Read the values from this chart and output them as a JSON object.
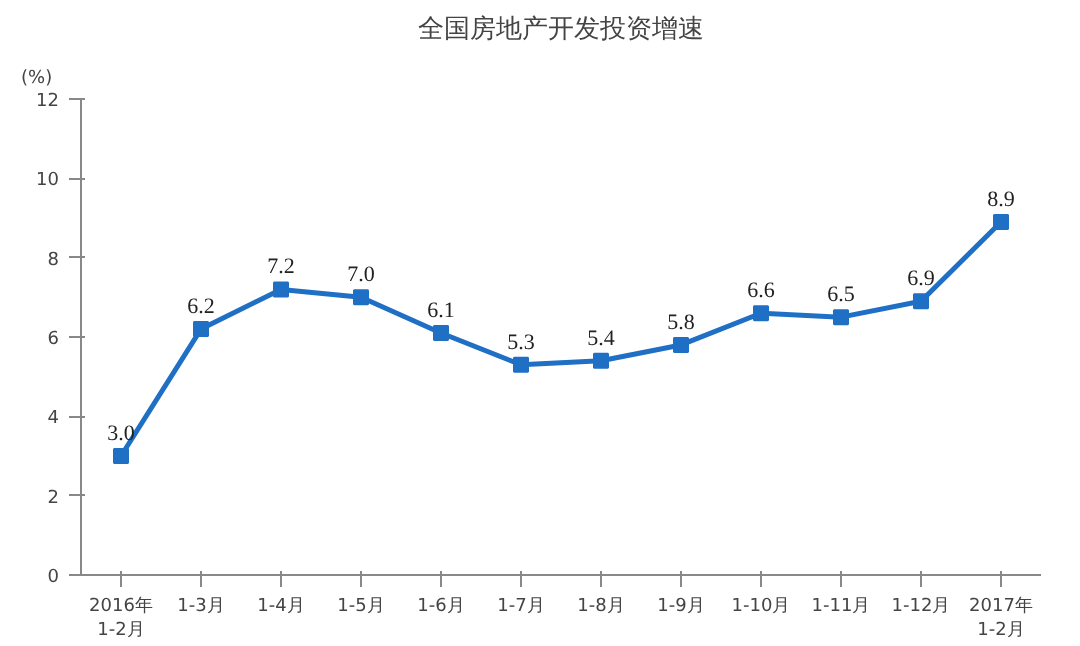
{
  "chart_data": {
    "type": "line",
    "title": "全国房地产开发投资增速",
    "ylabel": "(%)",
    "categories": [
      "2016年\n1-2月",
      "1-3月",
      "1-4月",
      "1-5月",
      "1-6月",
      "1-7月",
      "1-8月",
      "1-9月",
      "1-10月",
      "1-11月",
      "1-12月",
      "2017年\n1-2月"
    ],
    "series": [
      {
        "color": "#1f6fc5",
        "values": [
          3.0,
          6.2,
          7.2,
          7.0,
          6.1,
          5.3,
          5.4,
          5.8,
          6.6,
          6.5,
          6.9,
          8.9
        ],
        "value_labels": [
          "3.0",
          "6.2",
          "7.2",
          "7.0",
          "6.1",
          "5.3",
          "5.4",
          "5.8",
          "6.6",
          "6.5",
          "6.9",
          "8.9"
        ]
      }
    ],
    "ylim": [
      0,
      12
    ],
    "yticks": [
      0,
      2,
      4,
      6,
      8,
      10,
      12
    ],
    "marker": "square",
    "line_style": "solid"
  }
}
